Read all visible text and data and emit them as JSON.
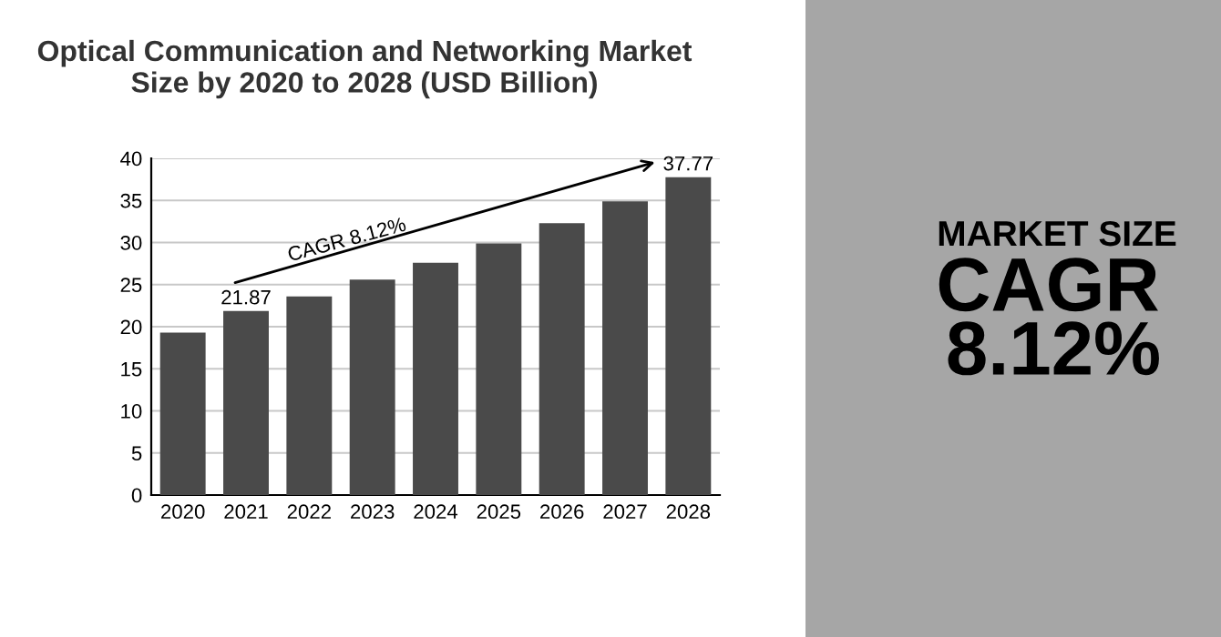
{
  "chart_data": {
    "type": "bar",
    "title": "Optical Communication and Networking Market\nSize by 2020 to 2028 (USD Billion)",
    "categories": [
      "2020",
      "2021",
      "2022",
      "2023",
      "2024",
      "2025",
      "2026",
      "2027",
      "2028"
    ],
    "values": [
      19.3,
      21.87,
      23.6,
      25.6,
      27.6,
      29.9,
      32.3,
      34.9,
      37.77
    ],
    "value_labels": [
      null,
      "21.87",
      null,
      null,
      null,
      null,
      null,
      null,
      "37.77"
    ],
    "color": "#4a4a4a",
    "ylim": [
      0,
      40
    ],
    "yticks": [
      0,
      5,
      10,
      15,
      20,
      25,
      30,
      35,
      40
    ],
    "grid": "y",
    "annotations": [
      "CAGR 8.12%",
      "MARKET SIZE",
      "CAGR",
      "8.12%"
    ]
  }
}
